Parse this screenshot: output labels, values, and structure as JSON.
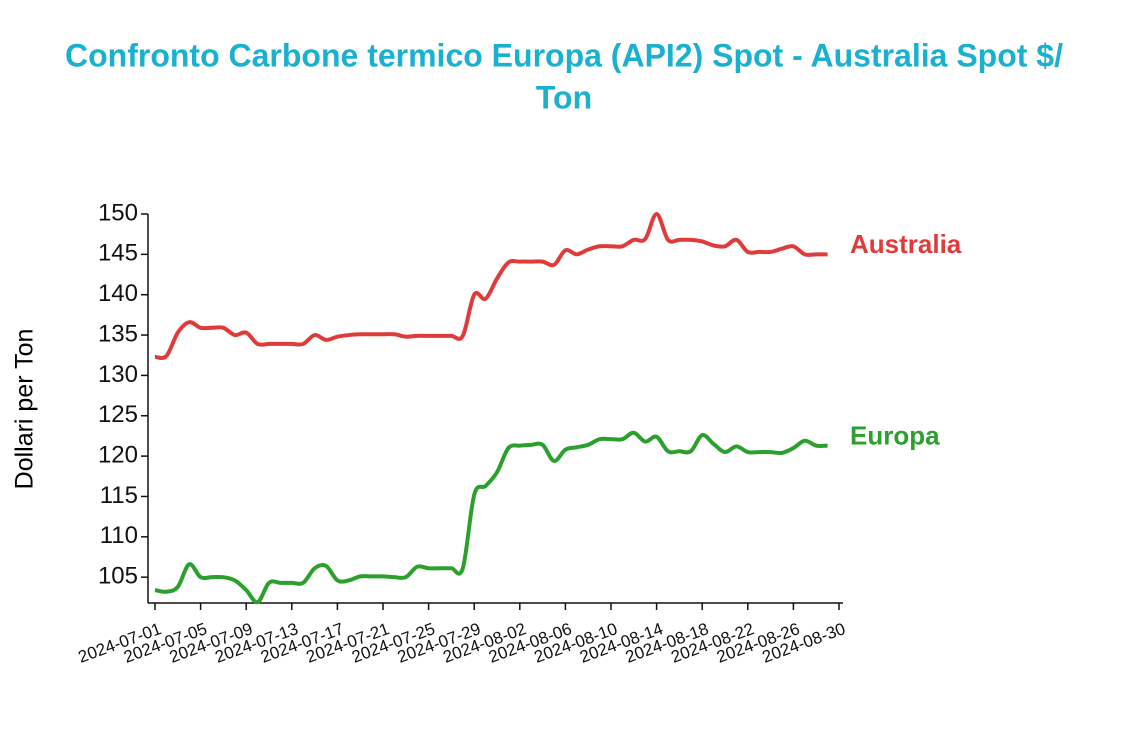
{
  "chart_data": {
    "type": "line",
    "title": "Confronto Carbone termico Europa (API2) Spot - Australia Spot $/ Ton",
    "title_lines": [
      "Confronto Carbone termico Europa (API2) Spot - Australia Spot $/",
      "Ton"
    ],
    "ylabel": "Dollari per Ton",
    "x": [
      "2024-07-01",
      "2024-07-02",
      "2024-07-03",
      "2024-07-04",
      "2024-07-05",
      "2024-07-06",
      "2024-07-07",
      "2024-07-08",
      "2024-07-09",
      "2024-07-10",
      "2024-07-11",
      "2024-07-12",
      "2024-07-13",
      "2024-07-14",
      "2024-07-15",
      "2024-07-16",
      "2024-07-17",
      "2024-07-18",
      "2024-07-19",
      "2024-07-20",
      "2024-07-21",
      "2024-07-22",
      "2024-07-23",
      "2024-07-24",
      "2024-07-25",
      "2024-07-26",
      "2024-07-27",
      "2024-07-28",
      "2024-07-29",
      "2024-07-30",
      "2024-07-31",
      "2024-08-01",
      "2024-08-02",
      "2024-08-03",
      "2024-08-04",
      "2024-08-05",
      "2024-08-06",
      "2024-08-07",
      "2024-08-08",
      "2024-08-09",
      "2024-08-10",
      "2024-08-11",
      "2024-08-12",
      "2024-08-13",
      "2024-08-14",
      "2024-08-15",
      "2024-08-16",
      "2024-08-17",
      "2024-08-18",
      "2024-08-19",
      "2024-08-20",
      "2024-08-21",
      "2024-08-22",
      "2024-08-23",
      "2024-08-24",
      "2024-08-25",
      "2024-08-26",
      "2024-08-27",
      "2024-08-28",
      "2024-08-29"
    ],
    "series": [
      {
        "name": "Australia",
        "color": "#e03b3b",
        "values": [
          132.3,
          132.4,
          135.3,
          136.6,
          135.9,
          135.9,
          135.9,
          135.0,
          135.3,
          133.9,
          133.9,
          133.9,
          133.9,
          133.9,
          135.0,
          134.4,
          134.8,
          135.0,
          135.1,
          135.1,
          135.1,
          135.1,
          134.8,
          134.9,
          134.9,
          134.9,
          134.9,
          134.9,
          140.0,
          139.5,
          142.0,
          144.0,
          144.1,
          144.1,
          144.1,
          143.7,
          145.5,
          145.0,
          145.6,
          146.0,
          146.0,
          146.0,
          146.8,
          146.9,
          150.0,
          146.8,
          146.8,
          146.8,
          146.6,
          146.1,
          146.0,
          146.8,
          145.3,
          145.3,
          145.3,
          145.7,
          146.0,
          145.0,
          145.0,
          145.0
        ]
      },
      {
        "name": "Europa",
        "color": "#2ca02c",
        "values": [
          103.4,
          103.2,
          103.8,
          106.6,
          105.0,
          105.0,
          105.0,
          104.6,
          103.4,
          101.9,
          104.3,
          104.3,
          104.3,
          104.3,
          106.1,
          106.4,
          104.6,
          104.6,
          105.1,
          105.1,
          105.1,
          105.0,
          105.0,
          106.3,
          106.1,
          106.1,
          106.1,
          106.1,
          115.2,
          116.3,
          118.0,
          121.0,
          121.3,
          121.4,
          121.4,
          119.4,
          120.8,
          121.1,
          121.4,
          122.1,
          122.1,
          122.1,
          122.9,
          121.8,
          122.4,
          120.6,
          120.6,
          120.6,
          122.6,
          121.5,
          120.5,
          121.2,
          120.5,
          120.5,
          120.5,
          120.4,
          121.0,
          121.9,
          121.3,
          121.3
        ]
      }
    ],
    "xlim": [
      "2024-07-01",
      "2024-08-30"
    ],
    "xticks": [
      "2024-07-01",
      "2024-07-05",
      "2024-07-09",
      "2024-07-13",
      "2024-07-17",
      "2024-07-21",
      "2024-07-25",
      "2024-07-29",
      "2024-08-02",
      "2024-08-06",
      "2024-08-10",
      "2024-08-14",
      "2024-08-18",
      "2024-08-22",
      "2024-08-26",
      "2024-08-30"
    ],
    "ylim": [
      101.8,
      150
    ],
    "yticks": [
      105,
      110,
      115,
      120,
      125,
      130,
      135,
      140,
      145,
      150
    ],
    "grid": false
  }
}
